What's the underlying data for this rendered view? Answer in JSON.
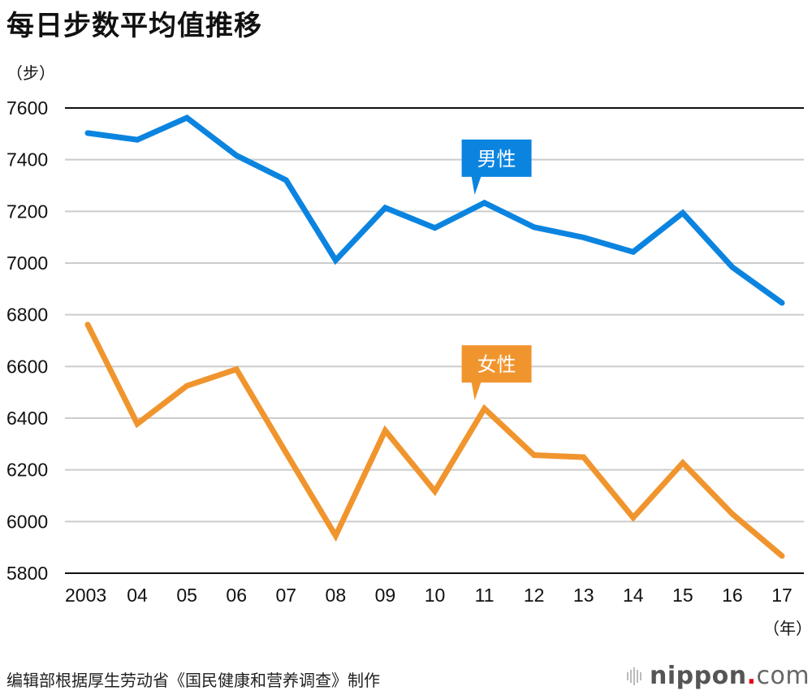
{
  "header": {
    "title": "每日步数平均值推移",
    "y_unit": "（步）",
    "x_unit": "（年）"
  },
  "footer": {
    "source": "编辑部根据厚生劳动省《国民健康和营养调查》制作",
    "logo": {
      "bold": "nippon",
      "dot": ".",
      "rest": "com",
      "icon": "sound-bars-icon"
    }
  },
  "colors": {
    "male": "#0b84e0",
    "female": "#f0952e",
    "grid": "#cccccc",
    "axis": "#111111"
  },
  "chart_data": {
    "type": "line",
    "title": "每日步数平均值推移",
    "xlabel": "（年）",
    "ylabel": "（步）",
    "ylim": [
      5800,
      7600
    ],
    "yticks": [
      7600,
      7400,
      7200,
      7000,
      6800,
      6600,
      6400,
      6200,
      6000,
      5800
    ],
    "grid": true,
    "categories": [
      "2003",
      "04",
      "05",
      "06",
      "07",
      "08",
      "09",
      "10",
      "11",
      "12",
      "13",
      "14",
      "15",
      "16",
      "17"
    ],
    "series": [
      {
        "name": "男性",
        "color": "#0b84e0",
        "label_at_index": 8,
        "values": [
          7503,
          7477,
          7562,
          7416,
          7321,
          7011,
          7214,
          7136,
          7233,
          7139,
          7099,
          7043,
          7194,
          6984,
          6846
        ]
      },
      {
        "name": "女性",
        "color": "#f0952e",
        "label_at_index": 8,
        "values": [
          6762,
          6378,
          6525,
          6589,
          6266,
          5945,
          6352,
          6117,
          6437,
          6257,
          6249,
          6015,
          6227,
          6029,
          5867
        ]
      }
    ],
    "legend": "inline-callouts"
  }
}
